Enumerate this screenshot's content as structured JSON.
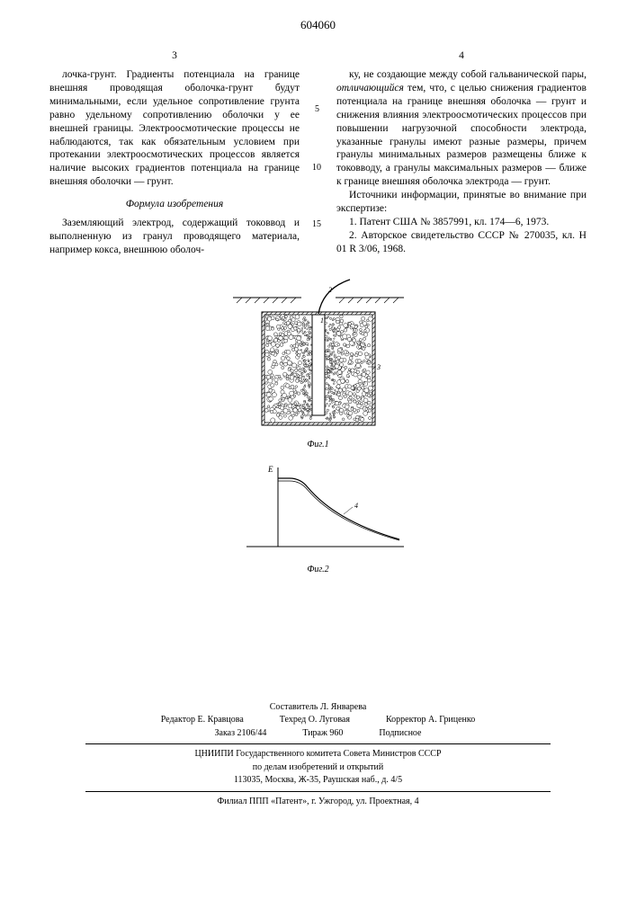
{
  "patent_number": "604060",
  "left_page_num": "3",
  "right_page_num": "4",
  "line_num_5": "5",
  "line_num_10": "10",
  "line_num_15": "15",
  "left_col": {
    "para1": "лочка-грунт. Градиенты потенциала на границе внешняя проводящая оболочка-грунт будут минимальными, если удельное сопротивление грунта равно удельному сопротивлению оболочки у ее внешней границы. Электроосмотические процессы не наблюдаются, так как обязательным условием при протекании электроосмотических процессов является наличие высоких градиентов потенциала на границе внешняя оболочки — грунт.",
    "formula_title": "Формула изобретения",
    "para2": "Заземляющий электрод, содержащий токоввод и выполненную из гранул проводящего материала, например кокса, внешнюю оболоч-"
  },
  "right_col": {
    "para1_a": "ку, не создающие между собой гальванической пары, ",
    "para1_b": "отличающийся",
    "para1_c": " тем, что, с целью снижения градиентов потенциала на границе внешняя оболочка — грунт и снижения влияния электроосмотических процессов при повышении нагрузочной способности электрода, указанные гранулы имеют разные размеры, причем гранулы минимальных размеров размещены ближе к токовводу, а гранулы максимальных размеров — ближе к границе внешняя оболочка электрода — грунт.",
    "para2": "Источники информации, принятые во внимание при экспертизе:",
    "ref1": "1. Патент США № 3857991, кл. 174—6, 1973.",
    "ref2": "2. Авторское свидетельство СССР № 270035, кл. Н 01 R 3/06, 1968."
  },
  "fig1_caption": "Фиг.1",
  "fig2_caption": "Фиг.2",
  "fig_labels": {
    "l1": "1",
    "l2": "2",
    "l3": "3",
    "l4": "4",
    "axisE": "E"
  },
  "credits": {
    "compiler": "Составитель Л. Январева",
    "editor": "Редактор Е. Кравцова",
    "tech": "Техред О. Луговая",
    "corrector": "Корректор А. Гриценко",
    "order": "Заказ 2106/44",
    "tirazh": "Тираж 960",
    "subscribe": "Подписное",
    "org1": "ЦНИИПИ Государственного комитета Совета Министров СССР",
    "org2": "по делам изобретений и открытий",
    "addr1": "113035, Москва, Ж-35, Раушская наб., д. 4/5",
    "addr2": "Филиал ППП «Патент», г. Ужгород, ул. Проектная, 4"
  },
  "fig1": {
    "width": 190,
    "height": 170,
    "outer_fill": "#ffffff",
    "hatch_stroke": "#000000",
    "granule_fill": "#ffffff",
    "granule_stroke": "#000000"
  },
  "fig2": {
    "width": 190,
    "height": 110,
    "stroke": "#000000"
  }
}
